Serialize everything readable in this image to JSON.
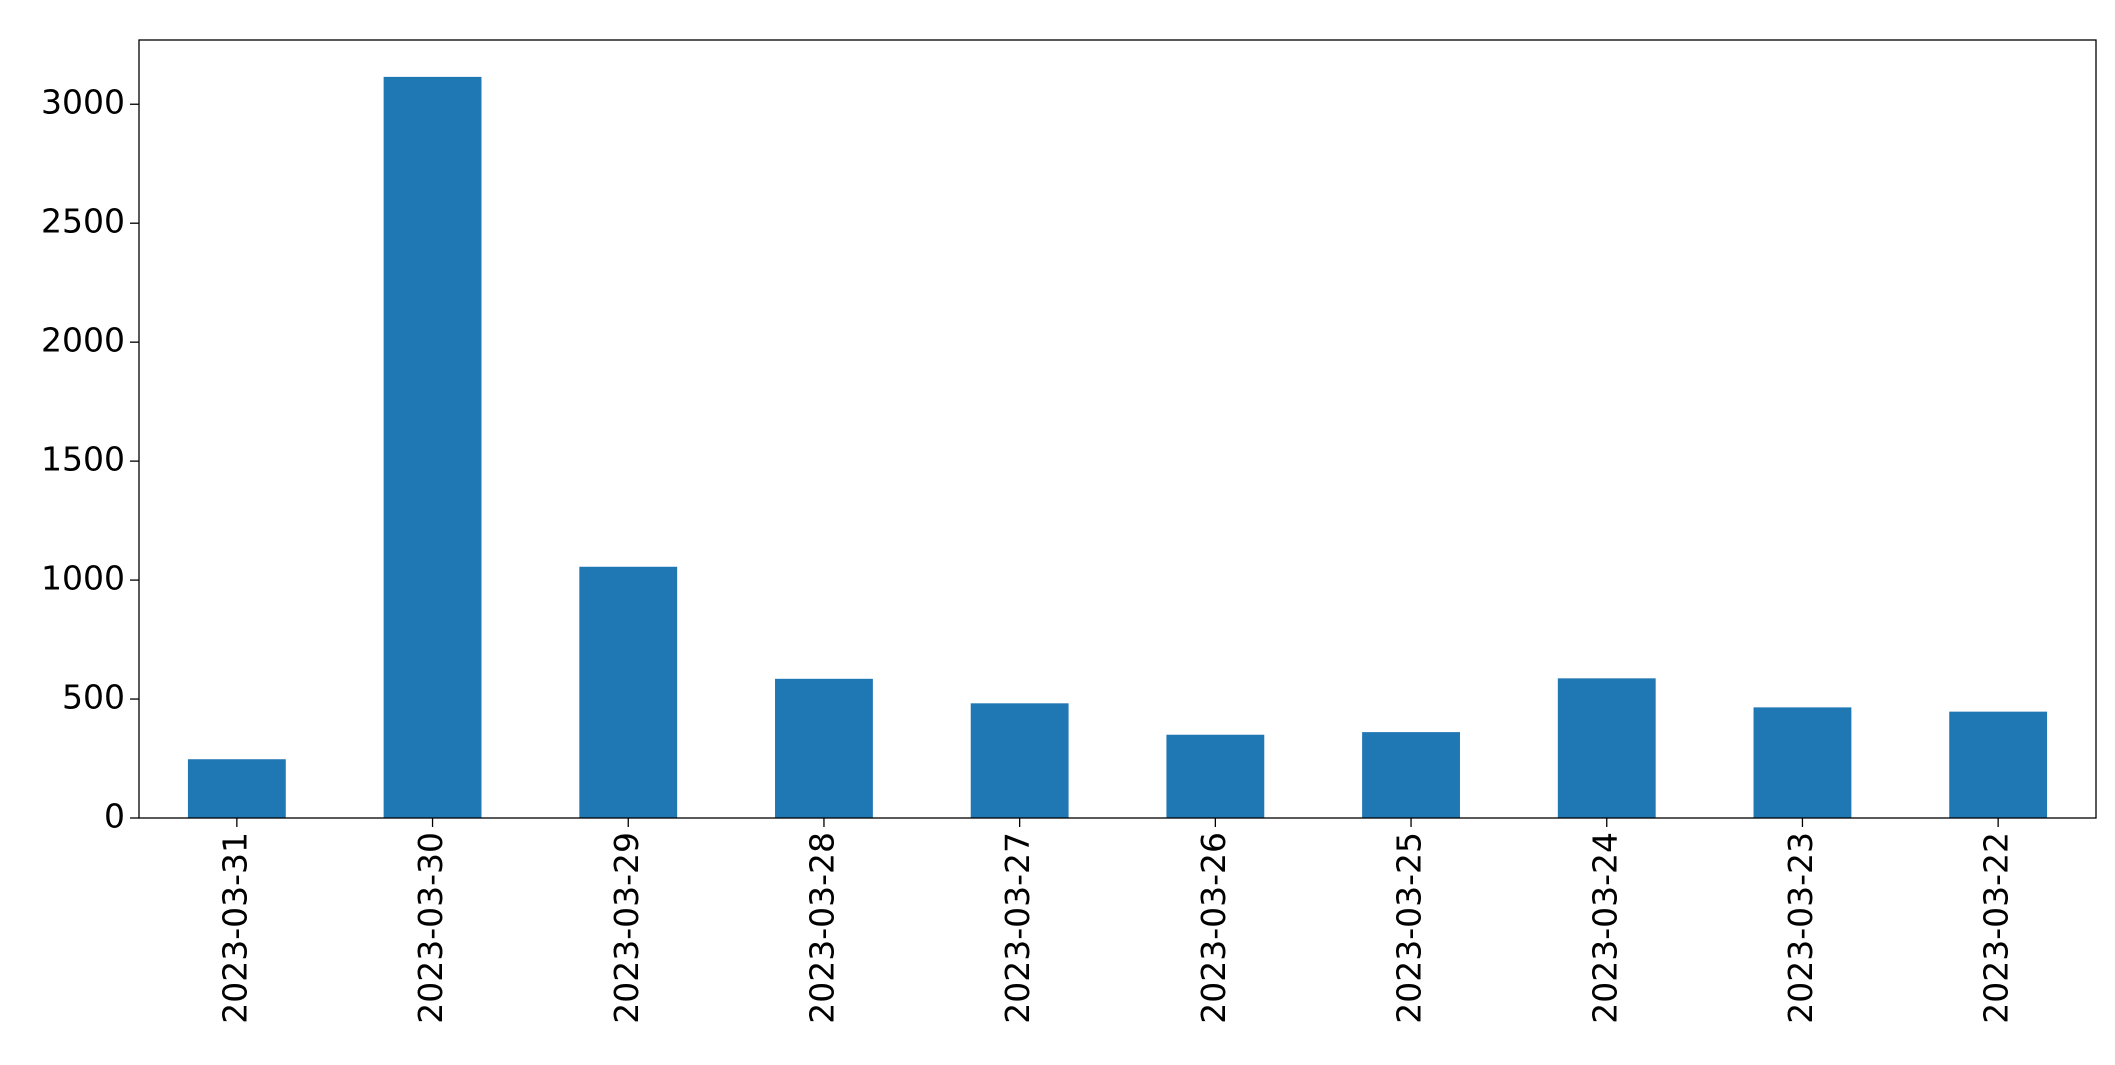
{
  "chart_data": {
    "type": "bar",
    "categories": [
      "2023-03-31",
      "2023-03-30",
      "2023-03-29",
      "2023-03-28",
      "2023-03-27",
      "2023-03-26",
      "2023-03-25",
      "2023-03-24",
      "2023-03-23",
      "2023-03-22"
    ],
    "values": [
      247,
      3115,
      1056,
      585,
      482,
      350,
      361,
      587,
      465,
      447
    ],
    "color": "#1f77b4",
    "ylim": [
      0,
      3270
    ],
    "yticks": [
      0,
      500,
      1000,
      1500,
      2000,
      2500,
      3000
    ],
    "grid": false
  }
}
